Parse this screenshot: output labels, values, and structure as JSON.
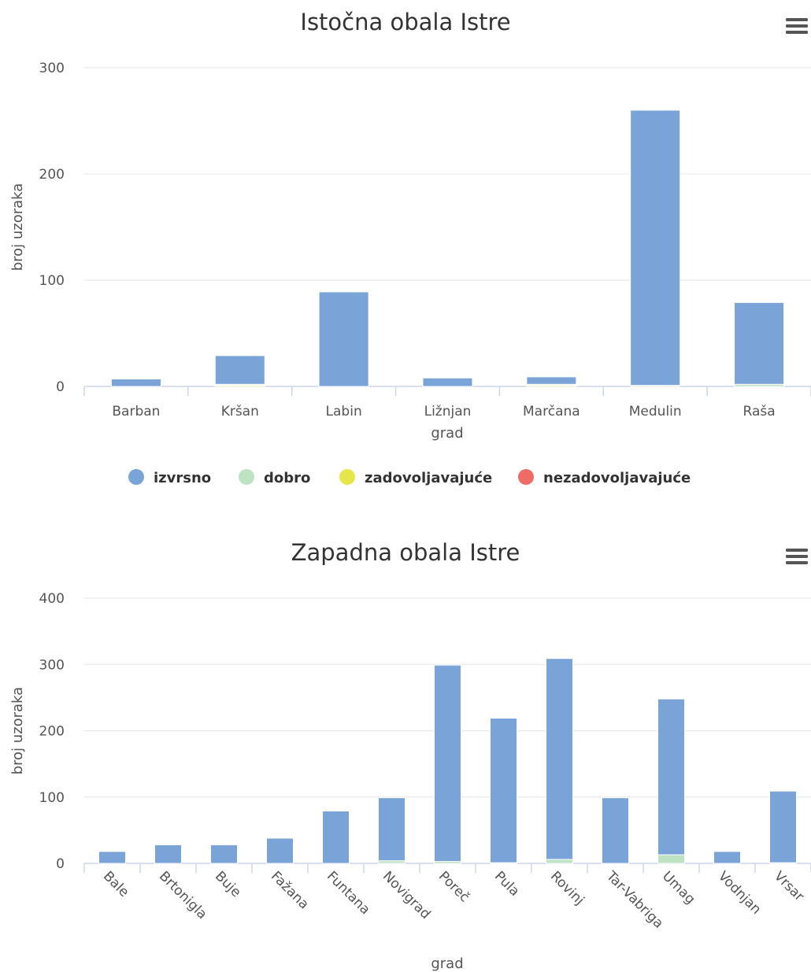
{
  "menu_icon": "hamburger-menu-icon",
  "colors": {
    "izvrsno": "#7aa3d8",
    "dobro": "#bde3c3",
    "zadovoljavajuce": "#e6e64a",
    "nezadovoljavajuce": "#ee6b66",
    "grid": "#e6e6e6",
    "axis": "#ccd6eb"
  },
  "legend": [
    {
      "name": "izvrsno",
      "color": "#7aa3d8"
    },
    {
      "name": "dobro",
      "color": "#bde3c3"
    },
    {
      "name": "zadovoljavajuće",
      "color": "#e6e64a"
    },
    {
      "name": "nezadovoljavajuće",
      "color": "#ee6b66"
    }
  ],
  "chart_data": [
    {
      "type": "bar",
      "stacked": true,
      "title": "Istočna obala Istre",
      "xlabel": "grad",
      "ylabel": "broj uzoraka",
      "ylim": [
        0,
        300
      ],
      "yticks": [
        0,
        100,
        200,
        300
      ],
      "categories": [
        "Barban",
        "Kršan",
        "Labin",
        "Ližnjan",
        "Marčana",
        "Medulin",
        "Raša"
      ],
      "series": [
        {
          "name": "izvrsno",
          "values": [
            7,
            27,
            89,
            8,
            7,
            259,
            77
          ]
        },
        {
          "name": "dobro",
          "values": [
            0,
            1,
            0,
            0,
            1,
            1,
            2
          ]
        },
        {
          "name": "zadovoljavajuće",
          "values": [
            0,
            1,
            0,
            0,
            1,
            0,
            0
          ]
        },
        {
          "name": "nezadovoljavajuće",
          "values": [
            0,
            0,
            0,
            0,
            0,
            0,
            0
          ]
        }
      ],
      "x_labels_rotated": false,
      "grid": true,
      "legend_position": "bottom"
    },
    {
      "type": "bar",
      "stacked": true,
      "title": "Zapadna obala Istre",
      "xlabel": "grad",
      "ylabel": "broj uzoraka",
      "ylim": [
        0,
        400
      ],
      "yticks": [
        0,
        100,
        200,
        300,
        400
      ],
      "categories": [
        "Bale",
        "Brtonigla",
        "Buje",
        "Fažana",
        "Funtana",
        "Novigrad",
        "Poreč",
        "Pula",
        "Rovinj",
        "Tar-Vabriga",
        "Umag",
        "Vodnjan",
        "Vrsar"
      ],
      "series": [
        {
          "name": "izvrsno",
          "values": [
            18,
            28,
            28,
            38,
            79,
            95,
            296,
            218,
            303,
            99,
            235,
            18,
            108
          ]
        },
        {
          "name": "dobro",
          "values": [
            0,
            0,
            0,
            0,
            0,
            4,
            3,
            1,
            6,
            0,
            13,
            0,
            1
          ]
        },
        {
          "name": "zadovoljavajuće",
          "values": [
            0,
            0,
            0,
            0,
            0,
            0,
            0,
            0,
            0,
            0,
            0,
            0,
            0
          ]
        },
        {
          "name": "nezadovoljavajuće",
          "values": [
            0,
            0,
            0,
            0,
            0,
            0,
            0,
            0,
            0,
            0,
            0,
            0,
            0
          ]
        }
      ],
      "x_labels_rotated": true,
      "grid": true,
      "legend_position": "none"
    }
  ]
}
